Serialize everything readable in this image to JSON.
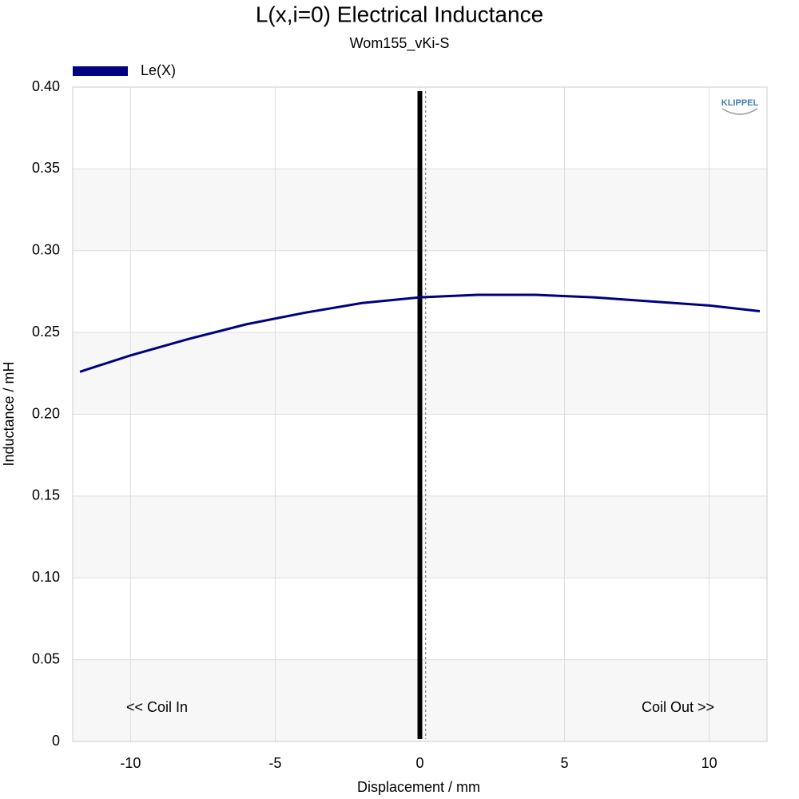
{
  "chart_data": {
    "type": "line",
    "title": "L(x,i=0) Electrical Inductance",
    "subtitle": "Wom155_vKi-S",
    "x_label": "Displacement / mm",
    "y_label": "Inductance / mH",
    "annotations": [
      "<< Coil In",
      "Coil Out >>"
    ],
    "logo": "KLIPPEL",
    "x": [
      -11.75,
      -10,
      -8,
      -6,
      -4,
      -2,
      0,
      2,
      4,
      6,
      8,
      10,
      11.75
    ],
    "series": [
      {
        "name": "Le(X)",
        "color": "#000080",
        "values": [
          0.226,
          0.236,
          0.246,
          0.255,
          0.262,
          0.268,
          0.2715,
          0.273,
          0.273,
          0.2715,
          0.269,
          0.2665,
          0.263
        ]
      }
    ],
    "xlim": [
      -12,
      12
    ],
    "xticks": [
      -10,
      -5,
      0,
      5,
      10
    ],
    "ylim": [
      0,
      0.4
    ],
    "yticks": [
      0,
      {
        "value": 0.05,
        "label": "0.05"
      },
      {
        "value": 0.1,
        "label": "0.10"
      },
      0.15,
      {
        "value": 0.2,
        "label": "0.20"
      },
      0.25,
      {
        "value": 0.3,
        "label": "0.30"
      },
      0.35,
      {
        "value": 0.4,
        "label": "0.40"
      }
    ],
    "vlines": [
      {
        "x": 0,
        "style": "solid"
      },
      {
        "x": 0.2,
        "style": "dashed"
      }
    ],
    "grid": true,
    "legend": "top-left"
  }
}
